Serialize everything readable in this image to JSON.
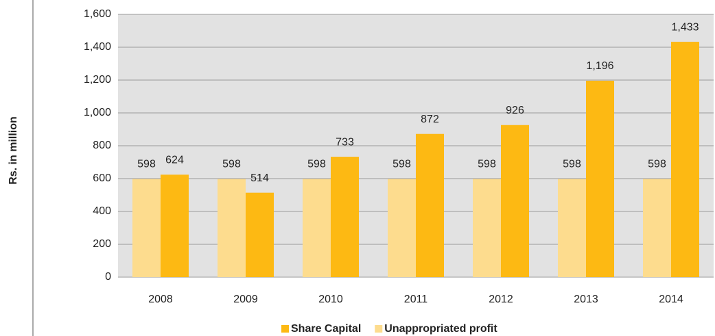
{
  "chart_data": {
    "type": "bar",
    "y_label": "Rs. in million",
    "categories": [
      "2008",
      "2009",
      "2010",
      "2011",
      "2012",
      "2013",
      "2014"
    ],
    "series": [
      {
        "name": "Share Capital",
        "color": "#fdb913",
        "values": [
          624,
          514,
          733,
          872,
          926,
          1196,
          1433
        ],
        "value_labels": [
          "624",
          "514",
          "733",
          "872",
          "926",
          "1,196",
          "1,433"
        ]
      },
      {
        "name": "Unappropriated profit",
        "color": "#fddc8e",
        "values": [
          598,
          598,
          598,
          598,
          598,
          598,
          598
        ]
      }
    ],
    "ylim": [
      0,
      1600
    ],
    "yticks": [
      0,
      200,
      400,
      600,
      800,
      {
        "value": 1000,
        "label": "1,000"
      },
      {
        "value": 1200,
        "label": "1,200"
      },
      {
        "value": 1400,
        "label": "1,400"
      },
      {
        "value": 1600,
        "label": "1,600"
      }
    ],
    "grid": true,
    "legend": "bottom"
  }
}
